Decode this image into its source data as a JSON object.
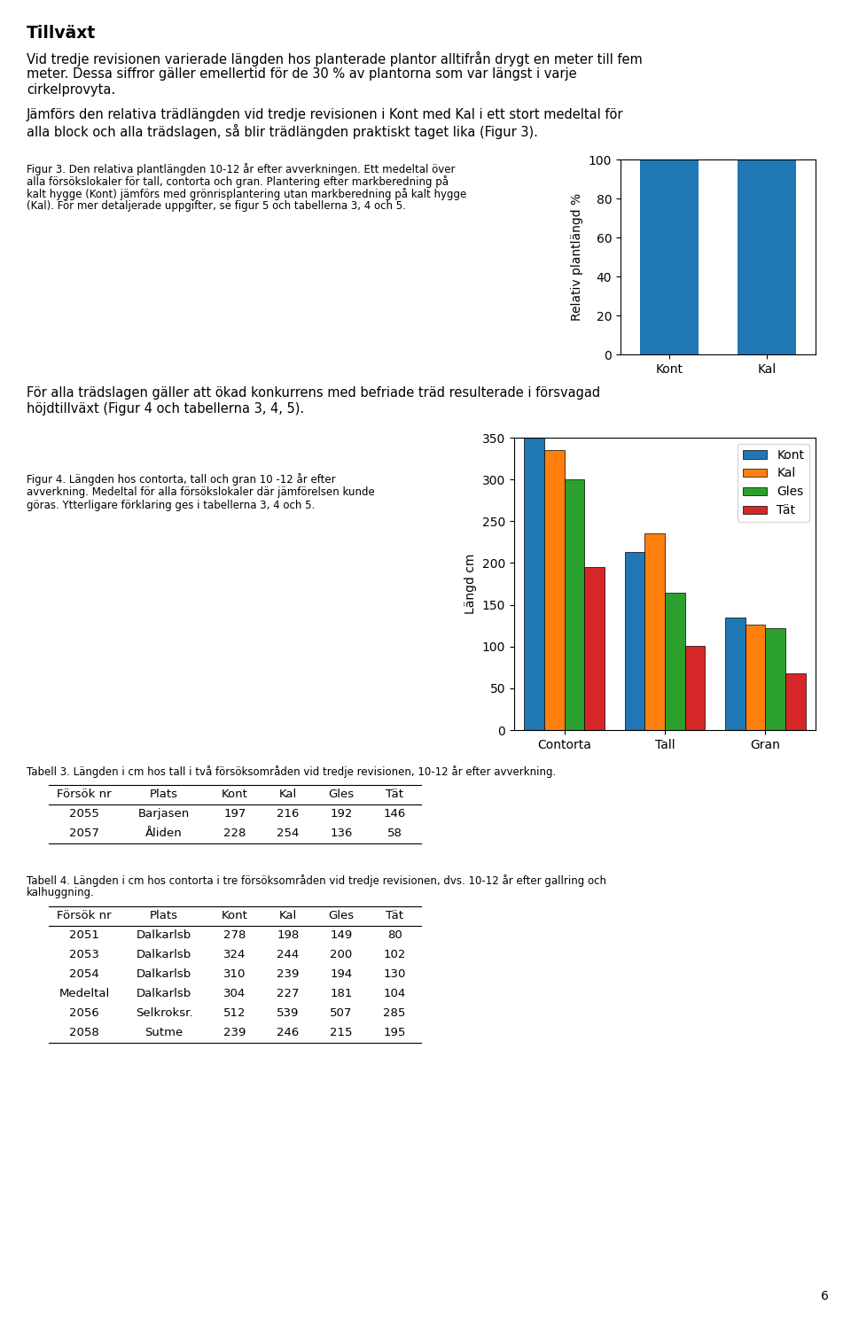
{
  "title": "Tillväxt",
  "annotations": [
    "Vid tredje revisionen varierade längden hos planterade plantor alltifrån drygt en meter till fem\nmeter. Dessa siffror gäller emellertid för de 30 % av plantorna som var längst i varje\ncirkelprovyta.",
    "Jämförs den relativa trädlängden vid tredje revisionen i Kont med Kal i ett stort medeltal för\nalla block och alla trädslagen, så blir trädlängden praktiskt taget lika (Figur 3).",
    "För alla trädslagen gäller att ökad konkurrens med befriade träd resulterade i försvagad\nhöjdtillväxt (Figur 4 och tabellerna 3, 4, 5).",
    "6"
  ],
  "chart_data": [
    {
      "type": "bar",
      "title": "Figur 3. Den relativa plantlängden 10-12 år efter avverkningen. Ett medeltal över\nalla försökslokaler för tall, contorta och gran. Plantering efter markberedning på\nkalt hygge (Kont) jämförs med grönrisplantering utan markberedning på kalt hygge\n(Kal). För mer detaljerade uppgifter, se figur 5 och tabellerna 3, 4 och 5.",
      "y_label": "Relativ plantlängd %",
      "categories": [
        "Kont",
        "Kal"
      ],
      "values": [
        100,
        100
      ],
      "ylim": [
        0,
        100
      ],
      "yticks": [
        0,
        20,
        40,
        60,
        80,
        100
      ]
    },
    {
      "type": "bar",
      "title": "Figur 4. Längden hos contorta, tall och gran 10 -12 år efter\navverkning. Medeltal för alla försökslokaler där jämförelsen kunde\ngöras. Ytterligare förklaring ges i tabellerna 3, 4 och 5.",
      "y_label": "Längd cm",
      "categories": [
        "Contorta",
        "Tall",
        "Gran"
      ],
      "series": [
        {
          "name": "Kont",
          "values": [
            350,
            213,
            135
          ]
        },
        {
          "name": "Kal",
          "values": [
            335,
            235,
            126
          ]
        },
        {
          "name": "Gles",
          "values": [
            300,
            164,
            122
          ]
        },
        {
          "name": "Tät",
          "values": [
            195,
            101,
            68
          ]
        }
      ],
      "ylim": [
        0,
        350
      ],
      "yticks": [
        0,
        50,
        100,
        150,
        200,
        250,
        300,
        350
      ],
      "legend": "upper right"
    },
    {
      "type": "table",
      "title": "Tabell 3. Längden i cm hos tall i två försöksområden vid tredje revisionen, 10-12 år efter avverkning.",
      "columns": [
        "Försök nr",
        "Plats",
        "Kont",
        "Kal",
        "Gles",
        "Tät"
      ],
      "rows": [
        [
          "2055",
          "Barjasen",
          "197",
          "216",
          "192",
          "146"
        ],
        [
          "2057",
          "Åliden",
          "228",
          "254",
          "136",
          "58"
        ]
      ]
    },
    {
      "type": "table",
      "title": "Tabell 4. Längden i cm hos contorta i tre försöksområden vid tredje revisionen, dvs. 10-12 år efter gallring och\nkalhuggning.",
      "columns": [
        "Försök nr",
        "Plats",
        "Kont",
        "Kal",
        "Gles",
        "Tät"
      ],
      "rows": [
        [
          "2051",
          "Dalkarlsb",
          "278",
          "198",
          "149",
          "80"
        ],
        [
          "2053",
          "Dalkarlsb",
          "324",
          "244",
          "200",
          "102"
        ],
        [
          "2054",
          "Dalkarlsb",
          "310",
          "239",
          "194",
          "130"
        ],
        [
          "Medeltal",
          "Dalkarlsb",
          "304",
          "227",
          "181",
          "104"
        ],
        [
          "2056",
          "Selkroksr.",
          "512",
          "539",
          "507",
          "285"
        ],
        [
          "2058",
          "Sutme",
          "239",
          "246",
          "215",
          "195"
        ]
      ]
    }
  ]
}
